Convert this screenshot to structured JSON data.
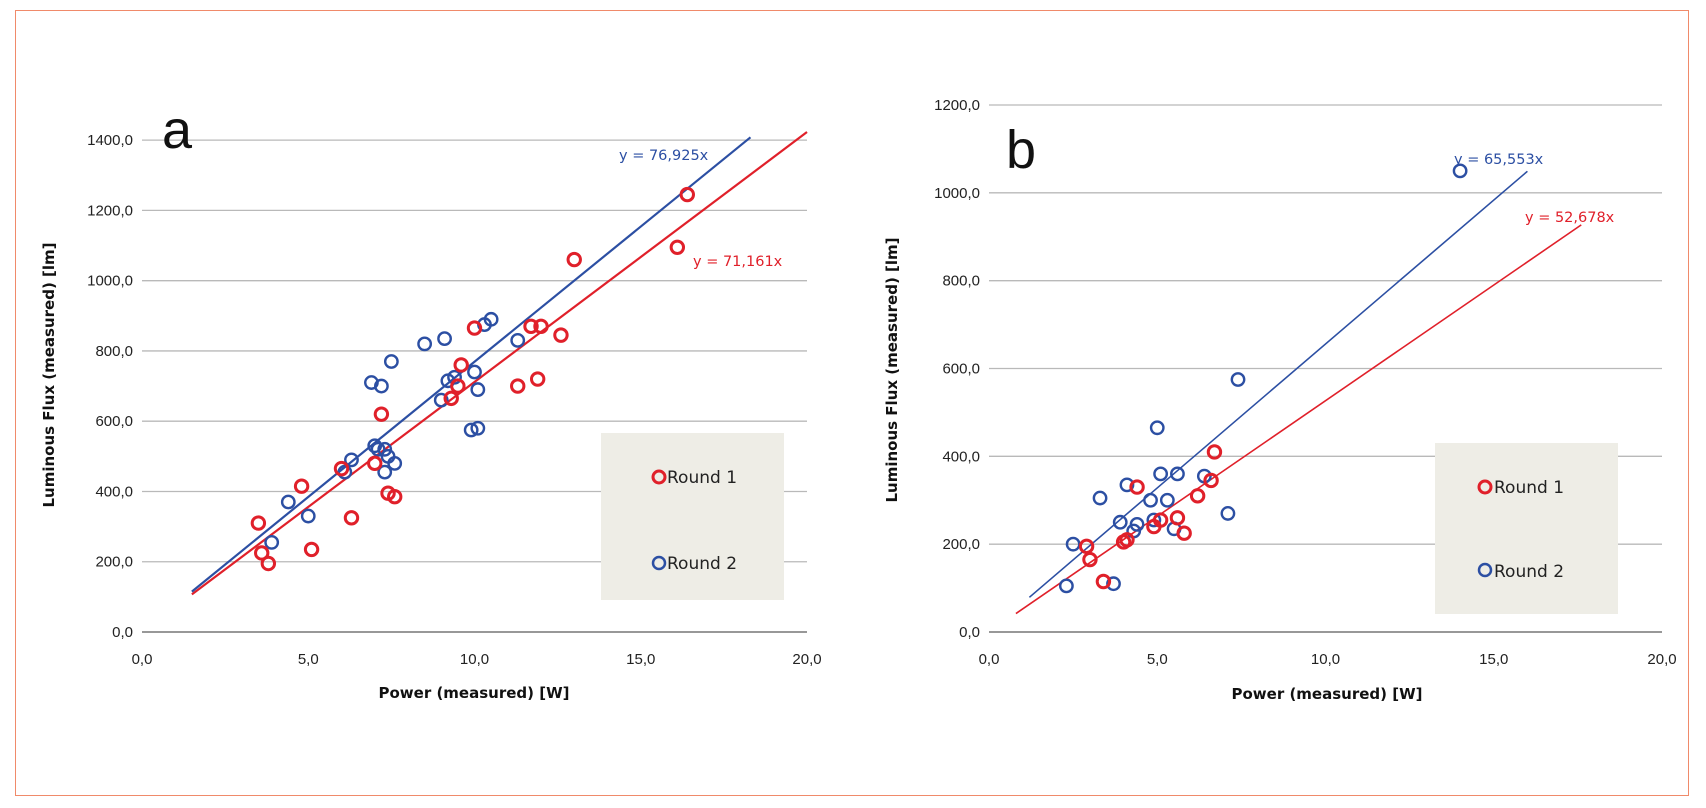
{
  "colors": {
    "round1": "#e0202a",
    "round2": "#2c4fa3",
    "grid": "#b9b9b9",
    "legend_bg": "#eeede6",
    "frame": "#f08a6a"
  },
  "chart_data": [
    {
      "type": "scatter",
      "panel_label": "a",
      "xlabel": "Power (measured) [W]",
      "ylabel": "Luminous Flux (measured) [lm]",
      "xlim": [
        0,
        20
      ],
      "ylim": [
        0,
        1500
      ],
      "x_ticks": [
        "0,0",
        "5,0",
        "10,0",
        "15,0",
        "20,0"
      ],
      "y_ticks": [
        "0,0",
        "200,0",
        "400,0",
        "600,0",
        "800,0",
        "1000,0",
        "1200,0",
        "1400,0"
      ],
      "grid": "horizontal",
      "legend_position": "right",
      "series": [
        {
          "name": "Round 1",
          "color": "#e0202a",
          "trendline": {
            "label": "y = 71,161x",
            "x": [
              1.5,
              20.0
            ],
            "y": [
              107,
              1423
            ]
          },
          "points": [
            [
              3.5,
              310
            ],
            [
              3.6,
              225
            ],
            [
              3.8,
              195
            ],
            [
              4.8,
              415
            ],
            [
              5.1,
              235
            ],
            [
              6.0,
              465
            ],
            [
              6.3,
              325
            ],
            [
              7.0,
              480
            ],
            [
              7.2,
              620
            ],
            [
              7.4,
              395
            ],
            [
              7.6,
              385
            ],
            [
              9.3,
              665
            ],
            [
              9.5,
              700
            ],
            [
              9.6,
              760
            ],
            [
              10.0,
              865
            ],
            [
              11.3,
              700
            ],
            [
              11.7,
              870
            ],
            [
              11.9,
              720
            ],
            [
              12.0,
              870
            ],
            [
              12.6,
              845
            ],
            [
              13.0,
              1060
            ],
            [
              16.1,
              1095
            ],
            [
              16.4,
              1245
            ]
          ]
        },
        {
          "name": "Round 2",
          "color": "#2c4fa3",
          "trendline": {
            "label": "y = 76,925x",
            "x": [
              1.5,
              18.3
            ],
            "y": [
              115,
              1408
            ]
          },
          "points": [
            [
              3.9,
              255
            ],
            [
              4.4,
              370
            ],
            [
              5.0,
              330
            ],
            [
              6.1,
              455
            ],
            [
              6.3,
              490
            ],
            [
              6.9,
              710
            ],
            [
              7.0,
              530
            ],
            [
              7.1,
              520
            ],
            [
              7.2,
              700
            ],
            [
              7.3,
              520
            ],
            [
              7.3,
              455
            ],
            [
              7.4,
              500
            ],
            [
              7.5,
              770
            ],
            [
              7.6,
              480
            ],
            [
              8.5,
              820
            ],
            [
              9.0,
              660
            ],
            [
              9.1,
              835
            ],
            [
              9.2,
              715
            ],
            [
              9.4,
              725
            ],
            [
              9.9,
              575
            ],
            [
              10.0,
              740
            ],
            [
              10.1,
              580
            ],
            [
              10.1,
              690
            ],
            [
              10.3,
              875
            ],
            [
              10.5,
              890
            ],
            [
              11.3,
              830
            ]
          ]
        }
      ]
    },
    {
      "type": "scatter",
      "panel_label": "b",
      "xlabel": "Power (measured) [W]",
      "ylabel": "Luminous Flux (measured) [lm]",
      "xlim": [
        0,
        20
      ],
      "ylim": [
        0,
        1200
      ],
      "x_ticks": [
        "0,0",
        "5,0",
        "10,0",
        "15,0",
        "20,0"
      ],
      "y_ticks": [
        "0,0",
        "200,0",
        "400,0",
        "600,0",
        "800,0",
        "1000,0",
        "1200,0"
      ],
      "grid": "horizontal",
      "legend_position": "right",
      "series": [
        {
          "name": "Round 1",
          "color": "#e0202a",
          "trendline": {
            "label": "y = 52,678x",
            "x": [
              0.8,
              17.6
            ],
            "y": [
              42,
              927
            ]
          },
          "points": [
            [
              2.9,
              195
            ],
            [
              3.0,
              165
            ],
            [
              3.4,
              115
            ],
            [
              4.0,
              205
            ],
            [
              4.1,
              210
            ],
            [
              4.4,
              330
            ],
            [
              4.9,
              240
            ],
            [
              5.1,
              255
            ],
            [
              5.6,
              260
            ],
            [
              5.8,
              225
            ],
            [
              6.2,
              310
            ],
            [
              6.6,
              345
            ],
            [
              6.7,
              410
            ]
          ]
        },
        {
          "name": "Round 2",
          "color": "#2c4fa3",
          "trendline": {
            "label": "y = 65,553x",
            "x": [
              1.2,
              16.0
            ],
            "y": [
              79,
              1049
            ]
          },
          "points": [
            [
              2.3,
              105
            ],
            [
              2.5,
              200
            ],
            [
              3.3,
              305
            ],
            [
              3.7,
              110
            ],
            [
              3.9,
              250
            ],
            [
              4.1,
              335
            ],
            [
              4.3,
              230
            ],
            [
              4.4,
              245
            ],
            [
              4.8,
              300
            ],
            [
              4.9,
              255
            ],
            [
              5.0,
              465
            ],
            [
              5.1,
              360
            ],
            [
              5.3,
              300
            ],
            [
              5.5,
              235
            ],
            [
              5.6,
              360
            ],
            [
              6.4,
              355
            ],
            [
              7.1,
              270
            ],
            [
              7.4,
              575
            ],
            [
              14.0,
              1050
            ]
          ]
        }
      ]
    }
  ]
}
